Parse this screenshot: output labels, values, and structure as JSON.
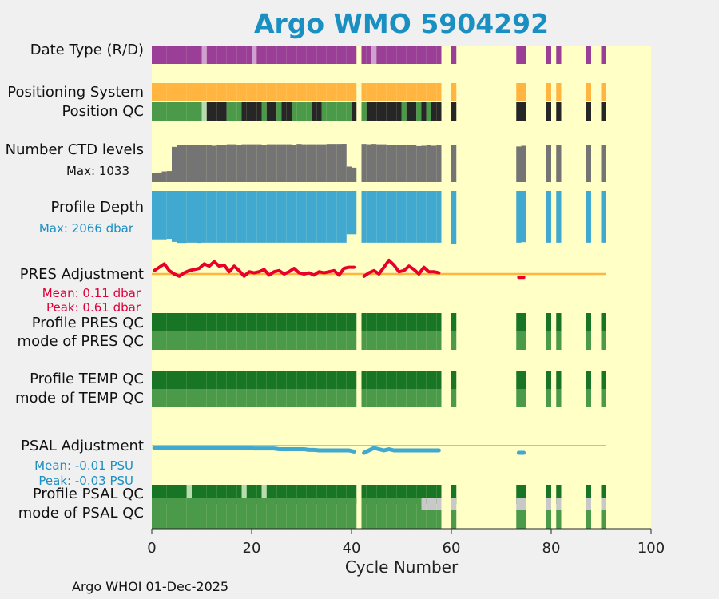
{
  "title": "Argo WMO 5904292",
  "footer": "Argo WHOI 01-Dec-2025",
  "colors": {
    "background": "#ffffc6",
    "title": "#1a8fc2",
    "purple": "#9a3e98",
    "lilac": "#cfa0d0",
    "orange": "#ffb53f",
    "green_dark": "#177525",
    "green_light": "#4a9a4a",
    "pale_green": "#b8dcb0",
    "black": "#262626",
    "grey": "#747474",
    "light_grey": "#c8c8c8",
    "blue": "#41a9d0",
    "red": "#e8002a",
    "pres_text": "#e0003a",
    "psal_text": "#1a8fc2"
  },
  "row_labels": [
    "Date Type (R/D)",
    "Positioning System",
    "Position QC",
    "Number CTD levels",
    "Profile Depth",
    "PRES Adjustment",
    "Profile PRES QC",
    "mode of PRES QC",
    "Profile TEMP QC",
    "mode of TEMP QC",
    "PSAL Adjustment",
    "Profile PSAL QC",
    "mode of PSAL QC"
  ],
  "annotations": {
    "ctd_max": "Max: 1033",
    "depth_max": "Max: 2066 dbar",
    "pres_mean": "Mean: 0.11 dbar",
    "pres_peak": "Peak: 0.61 dbar",
    "psal_mean": "Mean: -0.01 PSU",
    "psal_peak": "Peak: -0.03 PSU"
  },
  "chart_data": {
    "type": "heatmap",
    "title": "Argo WMO 5904292",
    "xlabel": "Cycle Number",
    "xlim": [
      0,
      100
    ],
    "xticks": [
      0,
      20,
      40,
      60,
      80,
      100
    ],
    "cycles": [
      1,
      2,
      3,
      4,
      5,
      6,
      7,
      8,
      9,
      10,
      11,
      12,
      13,
      14,
      15,
      16,
      17,
      18,
      19,
      20,
      21,
      22,
      23,
      24,
      25,
      26,
      27,
      28,
      29,
      30,
      31,
      32,
      33,
      34,
      35,
      36,
      37,
      38,
      39,
      40,
      41,
      43,
      44,
      45,
      46,
      47,
      48,
      49,
      50,
      51,
      52,
      53,
      54,
      55,
      56,
      57,
      58,
      61,
      74,
      75,
      80,
      82,
      88,
      91
    ],
    "date_type_D_cycles": [
      11,
      21,
      45
    ],
    "position_qc_black_cycles": [
      12,
      13,
      14,
      15,
      19,
      20,
      21,
      22,
      24,
      25,
      27,
      28,
      33,
      34,
      41,
      44,
      45,
      46,
      47,
      48,
      49,
      50,
      52,
      53,
      55,
      57,
      58,
      61,
      74,
      75,
      80,
      82,
      88,
      91
    ],
    "position_qc_pale_cycles": [
      11
    ],
    "number_ctd_levels": [
      250,
      260,
      290,
      300,
      950,
      1000,
      1000,
      1010,
      1010,
      1000,
      1010,
      1010,
      980,
      1000,
      1010,
      1020,
      1020,
      1010,
      1020,
      1020,
      1020,
      1020,
      1010,
      1020,
      1020,
      1020,
      1020,
      1020,
      1010,
      1030,
      1020,
      1020,
      1020,
      1020,
      1020,
      1030,
      1030,
      1030,
      1033,
      420,
      390,
      1030,
      1020,
      1030,
      1020,
      1020,
      1010,
      1010,
      1000,
      1010,
      1010,
      990,
      970,
      980,
      1000,
      980,
      1000,
      1000,
      960,
      980,
      1000,
      1000,
      1000,
      1000
    ],
    "profile_depth_max_dbar": 2066,
    "profile_depth_dbar": [
      1900,
      1900,
      1900,
      1880,
      2000,
      2040,
      2040,
      2030,
      2030,
      2040,
      2030,
      2030,
      2030,
      2030,
      2030,
      2030,
      2030,
      2030,
      2030,
      2030,
      2030,
      2030,
      2030,
      2030,
      2030,
      2030,
      2030,
      2030,
      2030,
      2030,
      2030,
      2030,
      2030,
      2030,
      2030,
      2030,
      2030,
      2030,
      2030,
      1700,
      1700,
      2030,
      2030,
      2030,
      2030,
      2030,
      2030,
      2030,
      2030,
      2030,
      2030,
      2030,
      2030,
      2030,
      2030,
      2030,
      2030,
      2066,
      2030,
      2010,
      2030,
      2030,
      2030,
      2030
    ],
    "pres_adjustment_dbar": [
      0.15,
      0.3,
      0.45,
      0.15,
      0.0,
      -0.1,
      0.05,
      0.15,
      0.2,
      0.25,
      0.45,
      0.35,
      0.55,
      0.35,
      0.4,
      0.1,
      0.35,
      0.15,
      -0.1,
      0.1,
      0.05,
      0.1,
      0.2,
      -0.05,
      0.1,
      0.15,
      0.0,
      0.1,
      0.25,
      0.05,
      0.0,
      0.05,
      -0.05,
      0.1,
      0.05,
      0.1,
      0.15,
      -0.05,
      0.25,
      0.3,
      0.3,
      -0.1,
      0.05,
      0.15,
      0.0,
      0.3,
      0.61,
      0.4,
      0.1,
      0.15,
      0.35,
      0.2,
      0.0,
      0.3,
      0.1,
      0.1,
      0.05,
      null,
      -0.15,
      -0.15,
      null,
      null,
      null,
      null
    ],
    "psal_adjustment_psu": [
      -0.01,
      -0.01,
      -0.01,
      -0.01,
      -0.01,
      -0.01,
      -0.01,
      -0.01,
      -0.01,
      -0.01,
      -0.01,
      -0.01,
      -0.01,
      -0.01,
      -0.01,
      -0.01,
      -0.01,
      -0.01,
      -0.01,
      -0.01,
      -0.012,
      -0.012,
      -0.012,
      -0.012,
      -0.012,
      -0.015,
      -0.015,
      -0.015,
      -0.015,
      -0.015,
      -0.015,
      -0.018,
      -0.018,
      -0.02,
      -0.02,
      -0.02,
      -0.02,
      -0.02,
      -0.02,
      -0.02,
      -0.025,
      -0.03,
      -0.02,
      -0.01,
      -0.015,
      -0.02,
      -0.015,
      -0.02,
      -0.02,
      -0.02,
      -0.02,
      -0.02,
      -0.02,
      -0.02,
      -0.02,
      -0.02,
      -0.02,
      null,
      -0.03,
      -0.03,
      null,
      null,
      null,
      null
    ],
    "psal_qc_pale_cycles": [
      8,
      19,
      23
    ],
    "psal_mode_grey_cycles": [
      55,
      56,
      57,
      58,
      61,
      74,
      75,
      80,
      82,
      88,
      91
    ]
  }
}
